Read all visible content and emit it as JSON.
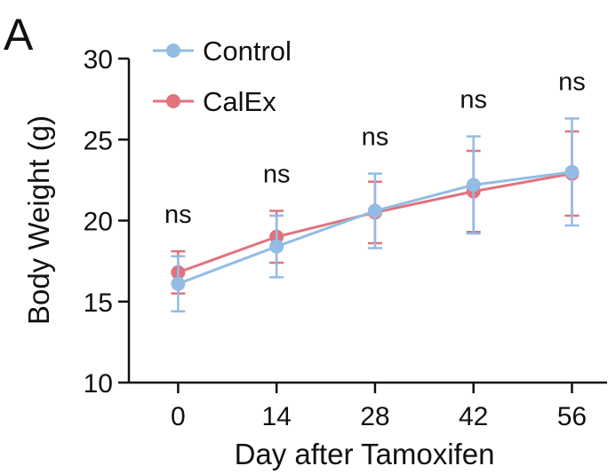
{
  "panel_label": "A",
  "chart_data": {
    "type": "line",
    "title": "",
    "xlabel": "Day after Tamoxifen",
    "ylabel": "Body Weight (g)",
    "x": [
      0,
      14,
      28,
      42,
      56
    ],
    "x_tick_labels": [
      "0",
      "14",
      "28",
      "42",
      "56"
    ],
    "xlim": [
      -7,
      61
    ],
    "ylim": [
      10,
      30
    ],
    "y_ticks": [
      10,
      15,
      20,
      25,
      30
    ],
    "y_tick_labels": [
      "10",
      "15",
      "20",
      "25",
      "30"
    ],
    "grid": false,
    "legend_position": "top-left",
    "series": [
      {
        "name": "Control",
        "color": "#92BCE4",
        "values": [
          16.1,
          18.4,
          20.6,
          22.2,
          23.0
        ],
        "error": [
          1.7,
          1.9,
          2.3,
          3.0,
          3.3
        ]
      },
      {
        "name": "CalEx",
        "color": "#E0737C",
        "values": [
          16.8,
          19.0,
          20.5,
          21.8,
          22.9
        ],
        "error": [
          1.3,
          1.6,
          1.9,
          2.5,
          2.6
        ]
      }
    ],
    "annotations": [
      "ns",
      "ns",
      "ns",
      "ns",
      "ns"
    ]
  }
}
